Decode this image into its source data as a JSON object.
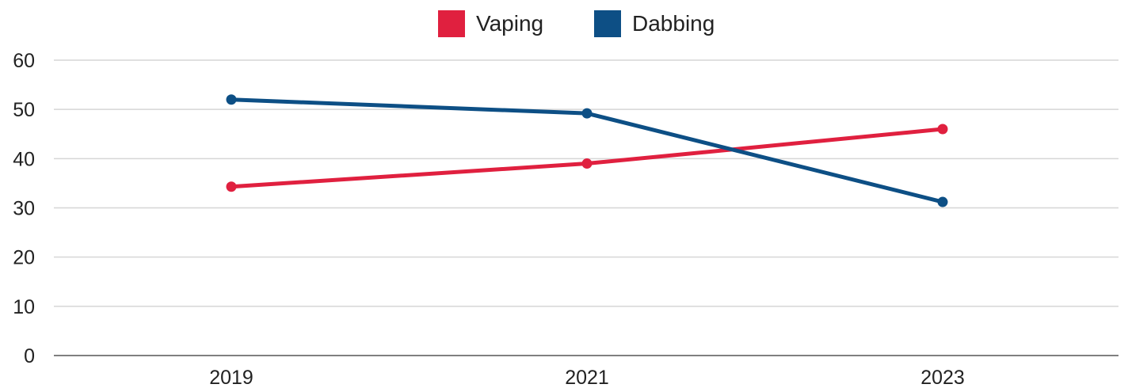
{
  "chart_data": {
    "type": "line",
    "title": "",
    "xlabel": "",
    "ylabel": "",
    "categories": [
      "2019",
      "2021",
      "2023"
    ],
    "ylim": [
      0,
      60
    ],
    "yticks": [
      0,
      10,
      20,
      30,
      40,
      50,
      60
    ],
    "grid": true,
    "legend_position": "top-center",
    "series": [
      {
        "name": "Vaping",
        "color": "#e0203f",
        "values": [
          34.3,
          39.0,
          46.0
        ]
      },
      {
        "name": "Dabbing",
        "color": "#0d4f85",
        "values": [
          52.0,
          49.2,
          31.2
        ]
      }
    ]
  }
}
